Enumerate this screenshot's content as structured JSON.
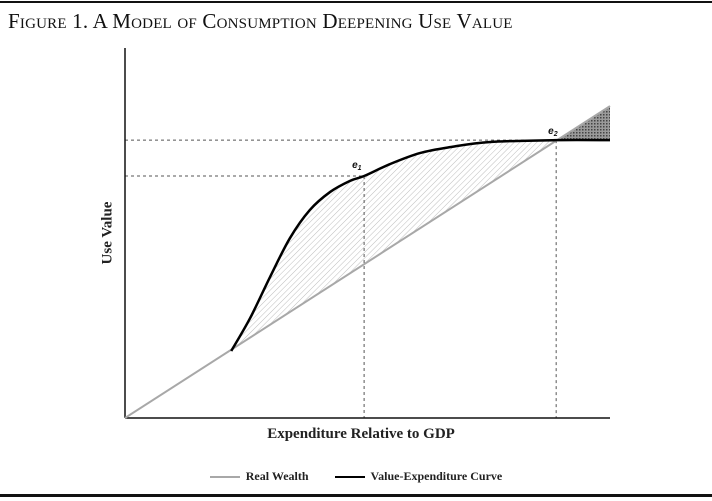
{
  "title": "Figure 1. A Model of Consumption Deepening Use Value",
  "chart_data": {
    "type": "line",
    "title": "Figure 1. A Model of Consumption Deepening Use Value",
    "xlabel": "Expenditure Relative to GDP",
    "ylabel": "Use Value",
    "xlim": [
      0,
      100
    ],
    "ylim": [
      0,
      100
    ],
    "grid": false,
    "legend_placement": "bottom-center",
    "series": [
      {
        "name": "Real Wealth",
        "color": "#a8a8a8",
        "x": [
          0,
          100
        ],
        "y": [
          0,
          84.3
        ]
      },
      {
        "name": "Value-Expenditure Curve",
        "color": "#000000",
        "x": [
          21.9,
          25.8,
          29.9,
          34.0,
          38.1,
          42.3,
          46.4,
          49.3,
          54.6,
          60.8,
          67.0,
          75.3,
          88.9,
          100
        ],
        "y": [
          18.1,
          27.0,
          38.1,
          48.6,
          56.2,
          61.1,
          64.1,
          65.4,
          68.6,
          71.6,
          73.2,
          74.6,
          75.1,
          75.1
        ]
      }
    ],
    "annotations": [
      {
        "label": "e",
        "sub": "1",
        "x": 49.3,
        "y": 65.4
      },
      {
        "label": "e",
        "sub": "2",
        "x": 88.9,
        "y": 75.1
      }
    ]
  }
}
